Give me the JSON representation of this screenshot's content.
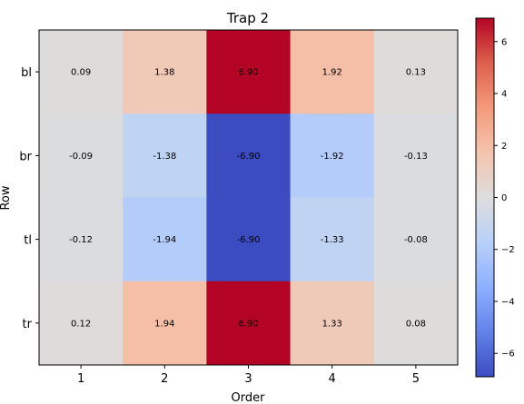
{
  "chart_data": {
    "type": "heatmap",
    "title": "Trap 2",
    "xlabel": "Order",
    "ylabel": "Row",
    "x_categories": [
      "1",
      "2",
      "3",
      "4",
      "5"
    ],
    "y_categories": [
      "bl",
      "br",
      "tl",
      "tr"
    ],
    "values": [
      [
        0.09,
        1.38,
        6.9,
        1.92,
        0.13
      ],
      [
        -0.09,
        -1.38,
        -6.9,
        -1.92,
        -0.13
      ],
      [
        -0.12,
        -1.94,
        -6.9,
        -1.33,
        -0.08
      ],
      [
        0.12,
        1.94,
        6.9,
        1.33,
        0.08
      ]
    ],
    "value_labels": [
      [
        "0.09",
        "1.38",
        "6.90",
        "1.92",
        "0.13"
      ],
      [
        "-0.09",
        "-1.38",
        "-6.90",
        "-1.92",
        "-0.13"
      ],
      [
        "-0.12",
        "-1.94",
        "-6.90",
        "-1.33",
        "-0.08"
      ],
      [
        "0.12",
        "1.94",
        "6.90",
        "1.33",
        "0.08"
      ]
    ],
    "colormap": "coolwarm",
    "vmin": -6.9,
    "vmax": 6.9,
    "colorbar_ticks": [
      -6,
      -4,
      -2,
      0,
      2,
      4,
      6
    ],
    "colorbar_tick_labels": [
      "−6",
      "−4",
      "−2",
      "0",
      "2",
      "4",
      "6"
    ]
  }
}
